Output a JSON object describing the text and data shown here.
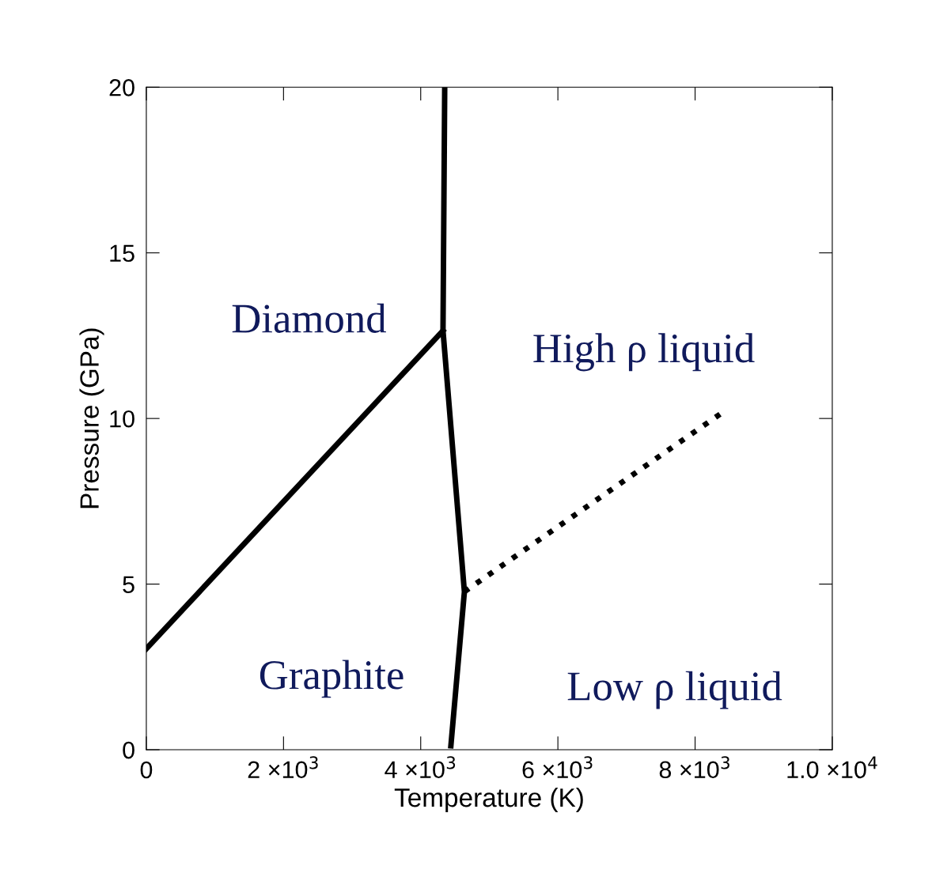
{
  "chart_data": {
    "type": "line",
    "xlabel": "Temperature (K)",
    "ylabel": "Pressure (GPa)",
    "series": [
      {
        "color": "#000000",
        "line_style": "solid",
        "x": [
          0,
          4325
        ],
        "values": [
          3.05,
          12.65
        ]
      },
      {
        "color": "#000000",
        "line_style": "solid",
        "x": [
          4350,
          4325,
          4637,
          4440
        ],
        "values": [
          20,
          12.65,
          4.77,
          0.12
        ]
      },
      {
        "color": "#000000",
        "line_style": "dotted",
        "x": [
          4637,
          8454
        ],
        "values": [
          4.77,
          10.26
        ]
      }
    ],
    "xlim": [
      0,
      10000
    ],
    "ylim": [
      0,
      20
    ],
    "xticks": [
      0,
      {
        "value": 2000,
        "label": "2 ×10$^{3}$"
      },
      {
        "value": 4000,
        "label": "4 ×10$^{3}$"
      },
      {
        "value": 6000,
        "label": "6 ×10$^{3}$"
      },
      {
        "value": 8000,
        "label": "8 ×10$^{3}$"
      },
      {
        "value": 10000,
        "label": "1.0 ×10$^{4}$"
      }
    ],
    "yticks": [
      0,
      5,
      10,
      15,
      20
    ],
    "grid": false,
    "legend": false,
    "annotations": [
      "Diamond",
      "High ρ liquid",
      "Graphite",
      "Low ρ liquid"
    ]
  }
}
